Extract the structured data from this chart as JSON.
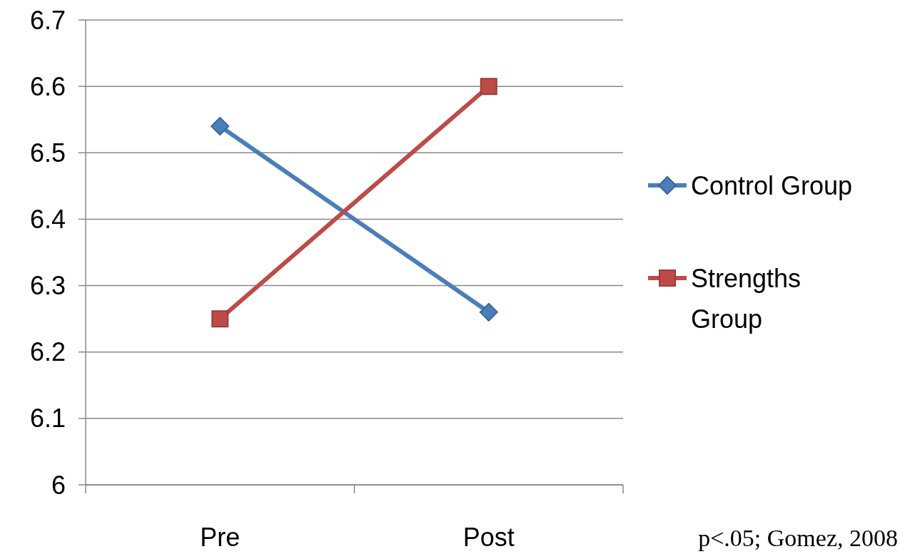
{
  "chart_data": {
    "type": "line",
    "categories": [
      "Pre",
      "Post"
    ],
    "series": [
      {
        "name": "Control Group",
        "color": "#4a7ebb",
        "values": [
          6.54,
          6.26
        ],
        "marker": "diamond"
      },
      {
        "name": "Strengths Group",
        "color": "#be4b48",
        "values": [
          6.25,
          6.6
        ],
        "marker": "square"
      }
    ],
    "ylim": [
      6,
      6.7
    ],
    "yticks": [
      6,
      6.1,
      6.2,
      6.3,
      6.4,
      6.5,
      6.6,
      6.7
    ],
    "grid": "y",
    "legend": "right",
    "line_style": "solid",
    "annotations": [
      "p<.05; Gomez, 2008"
    ]
  }
}
